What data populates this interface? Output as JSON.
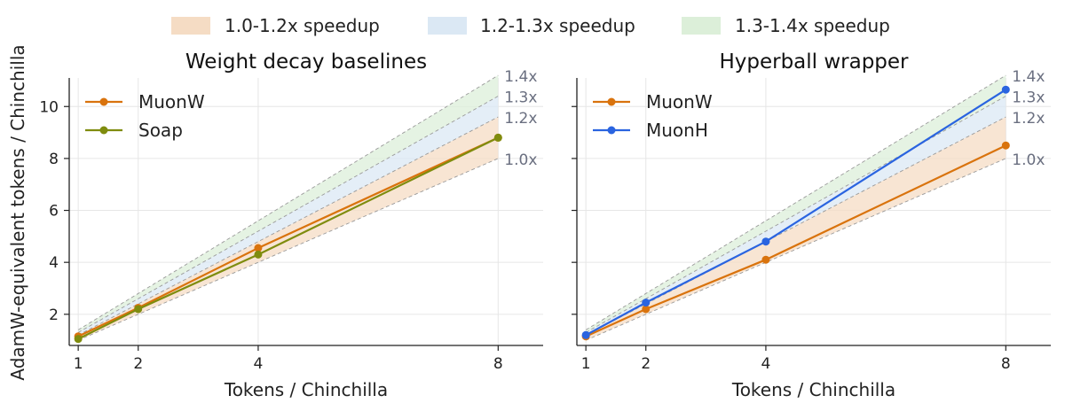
{
  "figure": {
    "shared_ylabel": "AdamW-equivalent tokens / Chinchilla",
    "band_legend": [
      {
        "label": "1.0-1.2x speedup",
        "color": "#f5dcc4"
      },
      {
        "label": "1.2-1.3x speedup",
        "color": "#dbe8f4"
      },
      {
        "label": "1.3-1.4x speedup",
        "color": "#dcefd9"
      }
    ]
  },
  "chart_data": [
    {
      "type": "line",
      "title": "Weight decay baselines",
      "xlabel": "Tokens / Chinchilla",
      "ylabel": "AdamW-equivalent tokens / Chinchilla",
      "x_ticks": [
        1,
        2,
        4,
        8
      ],
      "y_ticks": [
        2,
        4,
        6,
        8,
        10
      ],
      "xlim": [
        0.85,
        8.75
      ],
      "ylim": [
        0.8,
        11.1
      ],
      "grid": true,
      "legend_position": "top-left",
      "reference_lines": [
        {
          "label": "1.0x",
          "slope": 1.0
        },
        {
          "label": "1.2x",
          "slope": 1.2
        },
        {
          "label": "1.3x",
          "slope": 1.3
        },
        {
          "label": "1.4x",
          "slope": 1.4
        }
      ],
      "series": [
        {
          "name": "MuonW",
          "color": "#d9730d",
          "x": [
            1,
            2,
            4,
            8
          ],
          "y": [
            1.15,
            2.25,
            4.55,
            8.8
          ]
        },
        {
          "name": "Soap",
          "color": "#7f8c0e",
          "x": [
            1,
            2,
            4,
            8
          ],
          "y": [
            1.05,
            2.2,
            4.3,
            8.8
          ]
        }
      ]
    },
    {
      "type": "line",
      "title": "Hyperball wrapper",
      "xlabel": "Tokens / Chinchilla",
      "ylabel": "",
      "x_ticks": [
        1,
        2,
        4,
        8
      ],
      "y_ticks": [
        2,
        4,
        6,
        8,
        10
      ],
      "xlim": [
        0.85,
        8.75
      ],
      "ylim": [
        0.8,
        11.1
      ],
      "grid": true,
      "legend_position": "top-left",
      "reference_lines": [
        {
          "label": "1.0x",
          "slope": 1.0
        },
        {
          "label": "1.2x",
          "slope": 1.2
        },
        {
          "label": "1.3x",
          "slope": 1.3
        },
        {
          "label": "1.4x",
          "slope": 1.4
        }
      ],
      "series": [
        {
          "name": "MuonW",
          "color": "#d9730d",
          "x": [
            1,
            2,
            4,
            8
          ],
          "y": [
            1.15,
            2.2,
            4.1,
            8.5
          ]
        },
        {
          "name": "MuonH",
          "color": "#2a64e0",
          "x": [
            1,
            2,
            4,
            8
          ],
          "y": [
            1.2,
            2.45,
            4.8,
            10.65
          ]
        }
      ]
    }
  ]
}
